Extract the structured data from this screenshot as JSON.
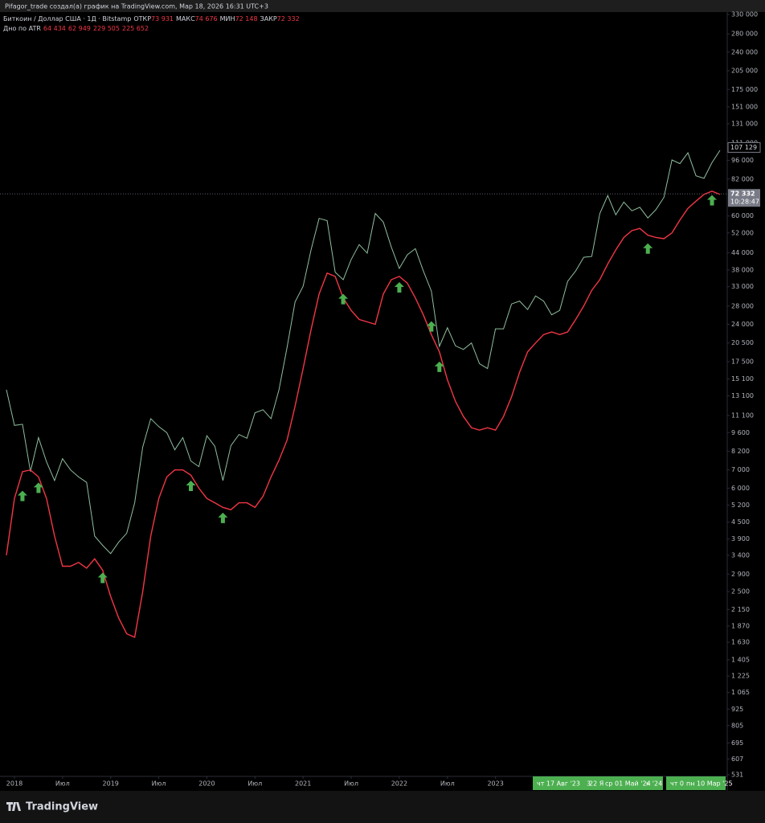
{
  "header": {
    "credit": "Pifagor_trade создал(а) график на TradingView.com, Мар 18, 2026 16:31 UTC+3",
    "ohlc": [
      {
        "label": "ОТКР",
        "value": "73 931"
      },
      {
        "label": "МАКС",
        "value": "74 676"
      },
      {
        "label": "МИН",
        "value": "72 148"
      },
      {
        "label": "ЗАКР",
        "value": "72 332"
      }
    ],
    "indicator_values": [
      "64 434",
      "62 949",
      "229 505",
      "225 652"
    ]
  },
  "chart_data": {
    "type": "line",
    "log_scale": true,
    "grid": false,
    "x": [
      "2017-12",
      "2018-01",
      "2018-02",
      "2018-03",
      "2018-04",
      "2018-05",
      "2018-06",
      "2018-07",
      "2018-08",
      "2018-09",
      "2018-10",
      "2018-11",
      "2018-12",
      "2019-01",
      "2019-02",
      "2019-03",
      "2019-04",
      "2019-05",
      "2019-06",
      "2019-07",
      "2019-08",
      "2019-09",
      "2019-10",
      "2019-11",
      "2019-12",
      "2020-01",
      "2020-02",
      "2020-03",
      "2020-04",
      "2020-05",
      "2020-06",
      "2020-07",
      "2020-08",
      "2020-09",
      "2020-10",
      "2020-11",
      "2020-12",
      "2021-01",
      "2021-02",
      "2021-03",
      "2021-04",
      "2021-05",
      "2021-06",
      "2021-07",
      "2021-08",
      "2021-09",
      "2021-10",
      "2021-11",
      "2021-12",
      "2022-01",
      "2022-02",
      "2022-03",
      "2022-04",
      "2022-05",
      "2022-06",
      "2022-07",
      "2022-08",
      "2022-09",
      "2022-10",
      "2022-11",
      "2022-12",
      "2023-01",
      "2023-02",
      "2023-03",
      "2023-04",
      "2023-05",
      "2023-06",
      "2023-07",
      "2023-08",
      "2023-09",
      "2023-10",
      "2023-11",
      "2023-12",
      "2024-01",
      "2024-02",
      "2024-03",
      "2024-04",
      "2024-05",
      "2024-06",
      "2024-07",
      "2024-08",
      "2024-09",
      "2024-10",
      "2024-11",
      "2024-12",
      "2025-01",
      "2025-02",
      "2025-03",
      "2025-04",
      "2025-05"
    ],
    "series": [
      {
        "name": "Биткоин / Доллар США · 1Д · Bitstamp",
        "color": "#8fbf9f",
        "values": [
          13800,
          10200,
          10300,
          6900,
          9200,
          7500,
          6400,
          7700,
          7000,
          6600,
          6300,
          4000,
          3700,
          3450,
          3800,
          4100,
          5300,
          8500,
          10800,
          10100,
          9600,
          8300,
          9200,
          7550,
          7200,
          9350,
          8550,
          6400,
          8600,
          9450,
          9150,
          11350,
          11650,
          10800,
          13800,
          19700,
          29000,
          33100,
          45200,
          58800,
          57700,
          37300,
          35000,
          41500,
          47100,
          43800,
          61300,
          57000,
          46200,
          38500,
          43200,
          45500,
          37700,
          31800,
          19900,
          23300,
          20000,
          19400,
          20500,
          17200,
          16500,
          23100,
          23100,
          28500,
          29200,
          27200,
          30500,
          29200,
          26000,
          27000,
          34500,
          37700,
          42300,
          42600,
          61200,
          71300,
          60600,
          67500,
          62700,
          64600,
          59000,
          63300,
          70200,
          96400,
          93400,
          102400,
          84300,
          82500,
          94200,
          104600
        ]
      },
      {
        "name": "Дно по ATR",
        "color": "#f23645",
        "values": [
          3400,
          5500,
          6900,
          7000,
          6600,
          5500,
          4000,
          3100,
          3100,
          3200,
          3050,
          3300,
          3000,
          2400,
          2000,
          1750,
          1700,
          2500,
          4000,
          5500,
          6600,
          7000,
          7000,
          6700,
          6000,
          5500,
          5300,
          5100,
          5000,
          5300,
          5300,
          5100,
          5600,
          6600,
          7600,
          9000,
          12000,
          16500,
          23000,
          31000,
          37000,
          36000,
          30000,
          27000,
          25000,
          24500,
          24000,
          31000,
          35000,
          36000,
          34000,
          30000,
          26000,
          22000,
          19000,
          15000,
          12500,
          11000,
          10000,
          9800,
          10000,
          9800,
          11000,
          13000,
          16000,
          19000,
          20500,
          22000,
          22500,
          22000,
          22500,
          25000,
          28000,
          32000,
          35000,
          40000,
          45000,
          50000,
          53000,
          54000,
          51000,
          50000,
          49500,
          52000,
          58000,
          64000,
          68000,
          72000,
          74000,
          72000
        ]
      }
    ],
    "signals": {
      "color": "#4caf50",
      "x": [
        "2018-02",
        "2018-04",
        "2018-12",
        "2019-11",
        "2020-03",
        "2021-06",
        "2022-01",
        "2022-05",
        "2022-06",
        "2024-08",
        "2025-04"
      ],
      "values": [
        5600,
        6000,
        2800,
        6100,
        4650,
        29600,
        32700,
        23500,
        16700,
        45400,
        68300
      ]
    },
    "price_lines": [
      {
        "value": 72332,
        "label": "72 332",
        "time": "10:28:47"
      },
      {
        "value": 107129,
        "label": "107 129"
      }
    ],
    "xlim": [
      "2017-12",
      "2025-06"
    ],
    "xticks": [
      {
        "value": "2018-01",
        "label": "2018"
      },
      {
        "value": "2018-07",
        "label": "Июл"
      },
      {
        "value": "2019-01",
        "label": "2019"
      },
      {
        "value": "2019-07",
        "label": "Июл"
      },
      {
        "value": "2020-01",
        "label": "2020"
      },
      {
        "value": "2020-07",
        "label": "Июл"
      },
      {
        "value": "2021-01",
        "label": "2021"
      },
      {
        "value": "2021-07",
        "label": "Июл"
      },
      {
        "value": "2022-01",
        "label": "2022"
      },
      {
        "value": "2022-07",
        "label": "Июл"
      },
      {
        "value": "2023-01",
        "label": "2023"
      }
    ],
    "ylim": [
      531,
      330000
    ],
    "yticks": [
      531,
      607,
      695,
      805,
      925,
      {
        "value": 1065,
        "label": "1 065"
      },
      {
        "value": 1225,
        "label": "1 225"
      },
      {
        "value": 1405,
        "label": "1 405"
      },
      {
        "value": 1630,
        "label": "1 630"
      },
      {
        "value": 1870,
        "label": "1 870"
      },
      {
        "value": 2150,
        "label": "2 150"
      },
      {
        "value": 2500,
        "label": "2 500"
      },
      {
        "value": 2900,
        "label": "2 900"
      },
      {
        "value": 3400,
        "label": "3 400"
      },
      {
        "value": 3900,
        "label": "3 900"
      },
      {
        "value": 4500,
        "label": "4 500"
      },
      {
        "value": 5200,
        "label": "5 200"
      },
      {
        "value": 6000,
        "label": "6 000"
      },
      {
        "value": 7000,
        "label": "7 000"
      },
      {
        "value": 8200,
        "label": "8 200"
      },
      {
        "value": 9600,
        "label": "9 600"
      },
      {
        "value": 11100,
        "label": "11 100"
      },
      {
        "value": 13100,
        "label": "13 100"
      },
      {
        "value": 15100,
        "label": "15 100"
      },
      {
        "value": 17500,
        "label": "17 500"
      },
      {
        "value": 20500,
        "label": "20 500"
      },
      {
        "value": 24000,
        "label": "24 000"
      },
      {
        "value": 28000,
        "label": "28 000"
      },
      {
        "value": 33000,
        "label": "33 000"
      },
      {
        "value": 38000,
        "label": "38 000"
      },
      {
        "value": 44000,
        "label": "44 000"
      },
      {
        "value": 52000,
        "label": "52 000"
      },
      {
        "value": 60000,
        "label": "60 000"
      },
      {
        "value": 82000,
        "label": "82 000"
      },
      {
        "value": 96000,
        "label": "96 000"
      },
      {
        "value": 111000,
        "label": "111 000"
      },
      {
        "value": 131000,
        "label": "131 000"
      },
      {
        "value": 151000,
        "label": "151 000"
      },
      {
        "value": 175000,
        "label": "175 000"
      },
      {
        "value": 205000,
        "label": "205 000"
      },
      {
        "value": 240000,
        "label": "240 000"
      },
      {
        "value": 280000,
        "label": "280 000"
      },
      {
        "value": 330000,
        "label": "330 000"
      }
    ]
  },
  "time_scale_labels": [
    "чт 17 Авг '23",
    "3",
    "22 Я",
    "ср 01 Май '24",
    "н '24",
    "чт 0",
    "пн 10 Мар '25"
  ],
  "footer": {
    "logo": "TradingView"
  }
}
